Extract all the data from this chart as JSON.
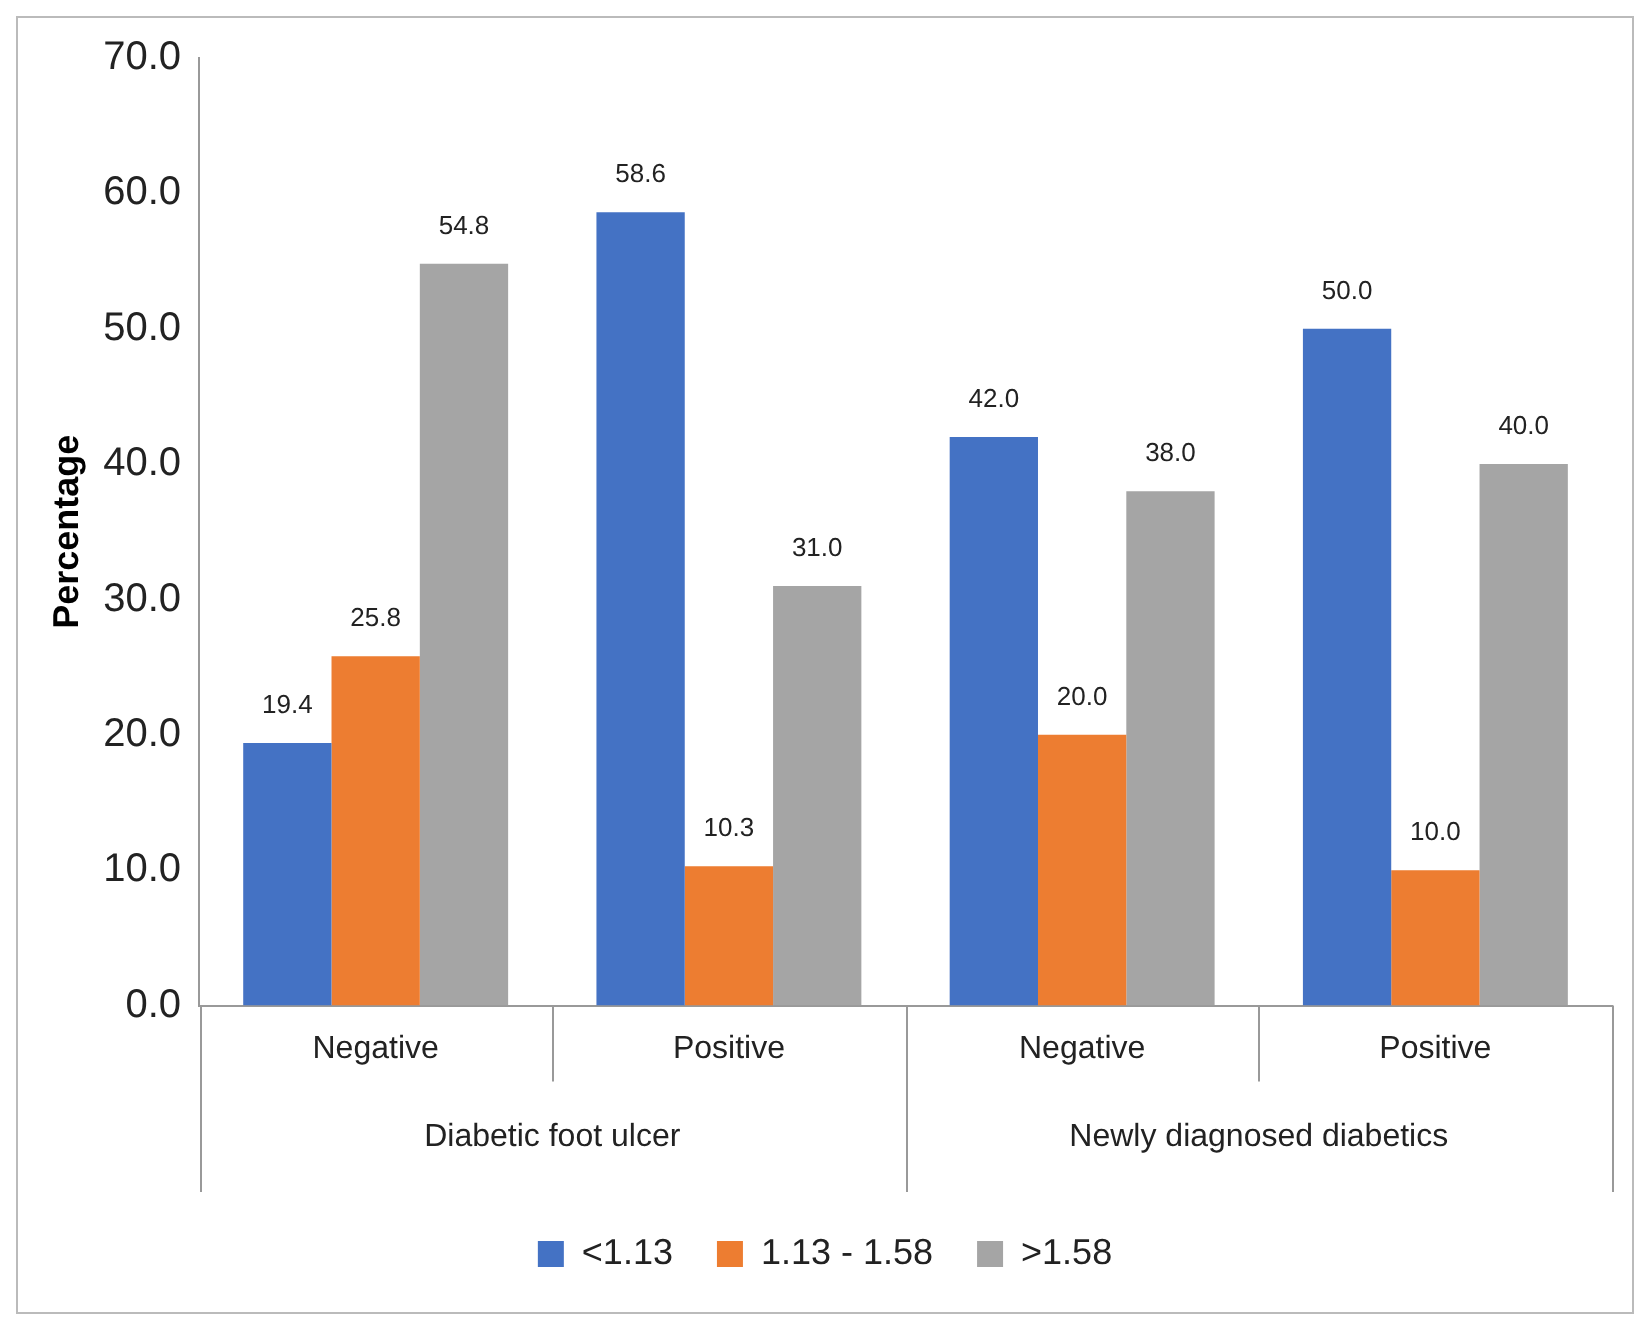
{
  "chart_data": {
    "type": "bar",
    "ylabel": "Percentage",
    "categories": [
      "Negative",
      "Positive",
      "Negative",
      "Positive"
    ],
    "annotations": [
      "Diabetic foot ulcer",
      "Newly diagnosed diabetics"
    ],
    "series": [
      {
        "name": "<1.13",
        "color": "#4472c4",
        "values": [
          19.4,
          58.6,
          42.0,
          50.0
        ],
        "value_labels": [
          "19.4",
          "58.6",
          "42.0",
          "50.0"
        ]
      },
      {
        "name": "1.13 - 1.58",
        "color": "#ed7d31",
        "values": [
          25.8,
          10.3,
          20.0,
          10.0
        ],
        "value_labels": [
          "25.8",
          "10.3",
          "20.0",
          "10.0"
        ]
      },
      {
        "name": ">1.58",
        "color": "#a5a5a5",
        "values": [
          54.8,
          31.0,
          38.0,
          40.0
        ],
        "value_labels": [
          "54.8",
          "31.0",
          "38.0",
          "40.0"
        ]
      }
    ],
    "ylim": [
      0,
      70
    ],
    "yticks": [
      {
        "value": 0,
        "label": "0.0"
      },
      {
        "value": 10,
        "label": "10.0"
      },
      {
        "value": 20,
        "label": "20.0"
      },
      {
        "value": 30,
        "label": "30.0"
      },
      {
        "value": 40,
        "label": "40.0"
      },
      {
        "value": 50,
        "label": "50.0"
      },
      {
        "value": 60,
        "label": "60.0"
      },
      {
        "value": 70,
        "label": "70.0"
      }
    ],
    "grid": false,
    "legend": "bottom"
  }
}
